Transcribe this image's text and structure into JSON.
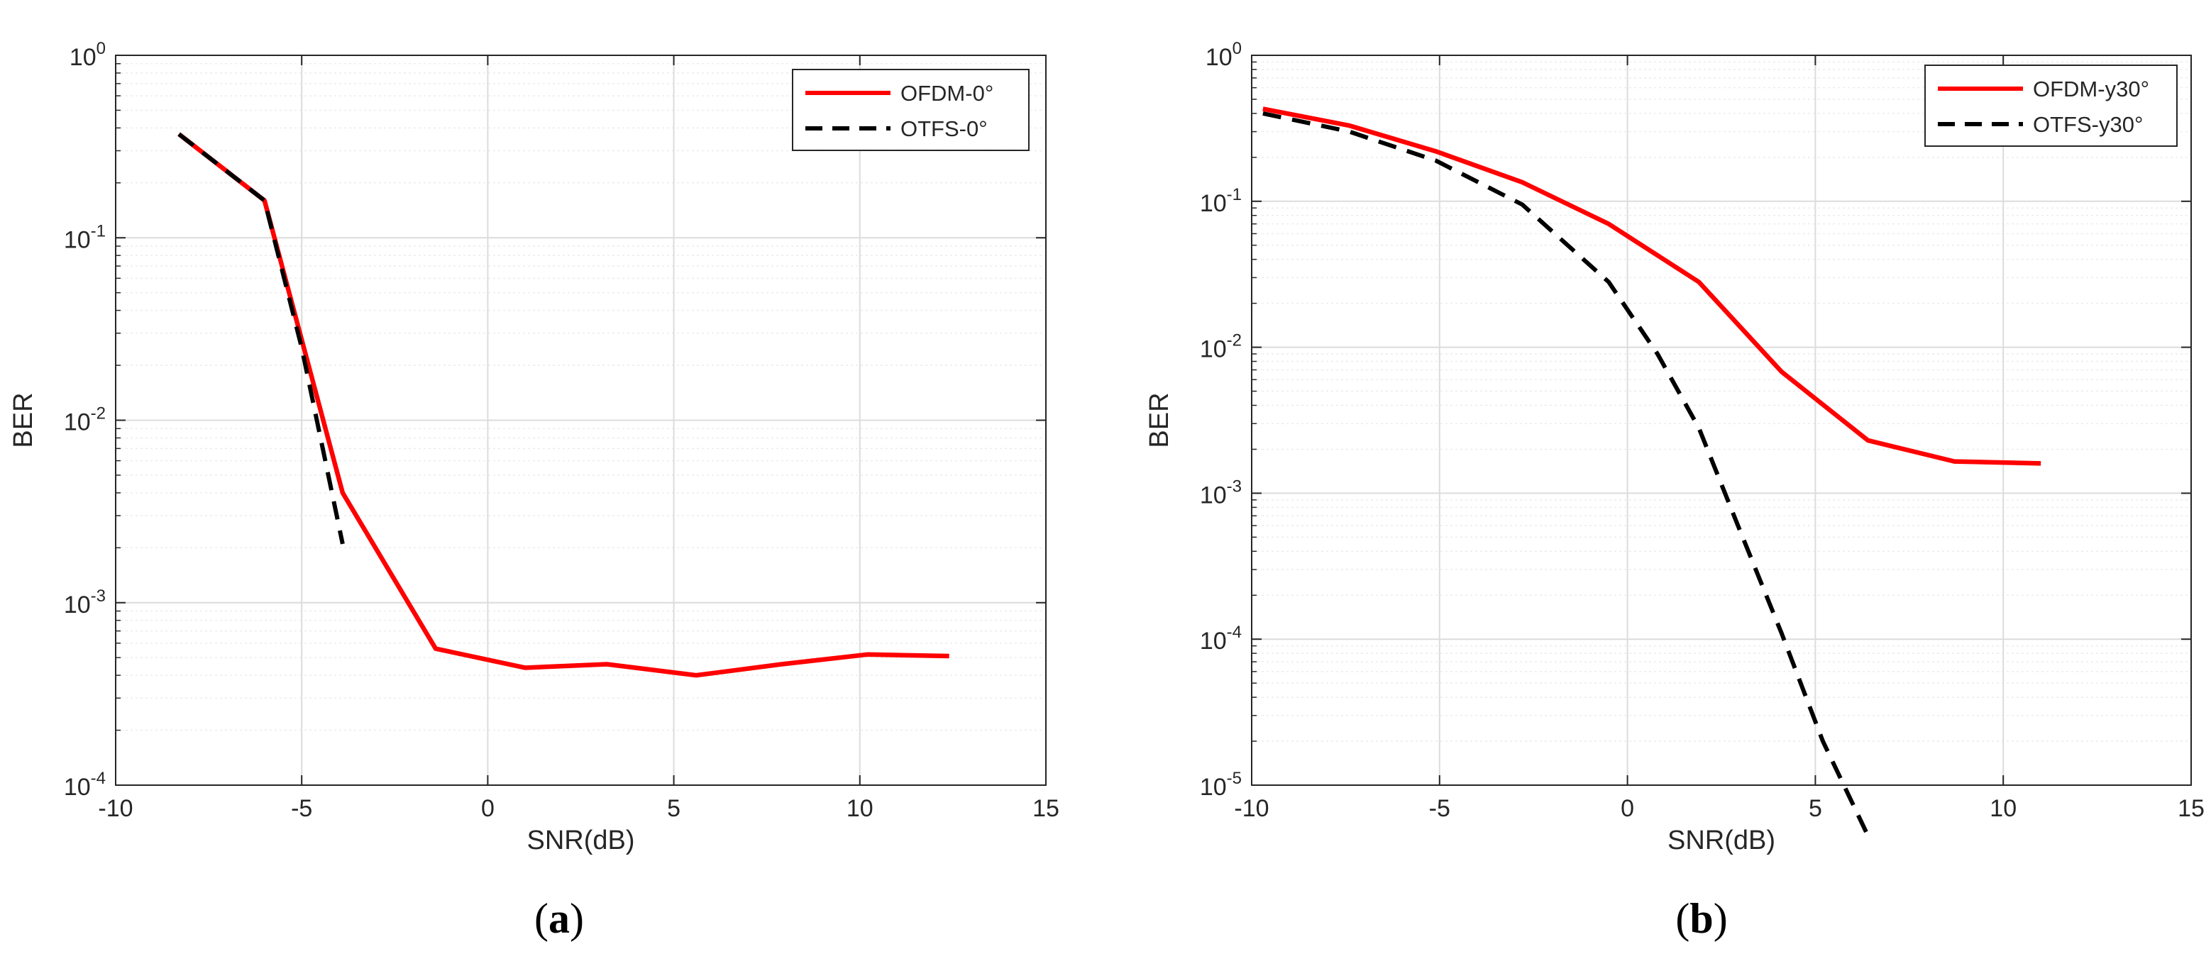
{
  "chart_data": [
    {
      "type": "line",
      "panel_label": "a",
      "xlabel": "SNR(dB)",
      "ylabel": "BER",
      "xlim": [
        -10,
        15
      ],
      "ylim": [
        0.0001,
        1
      ],
      "yscale": "log",
      "xticks": [
        "-10",
        "-5",
        "0",
        "5",
        "10",
        "15"
      ],
      "yticks": [
        {
          "base": "10",
          "exp": "0",
          "value": 1
        },
        {
          "base": "10",
          "exp": "-1",
          "value": 0.1
        },
        {
          "base": "10",
          "exp": "-2",
          "value": 0.01
        },
        {
          "base": "10",
          "exp": "-3",
          "value": 0.001
        },
        {
          "base": "10",
          "exp": "-4",
          "value": 0.0001
        }
      ],
      "grid": true,
      "legend_position": "top-right",
      "series": [
        {
          "name": "OFDM-0°",
          "style": "solid",
          "color": "#ff0000",
          "x": [
            -8.3,
            -6.0,
            -3.9,
            -1.4,
            1.0,
            3.2,
            5.6,
            7.9,
            10.2,
            12.4
          ],
          "y": [
            0.37,
            0.16,
            0.004,
            0.00056,
            0.00044,
            0.00046,
            0.0004,
            0.00046,
            0.00052,
            0.00051
          ]
        },
        {
          "name": "OTFS-0°",
          "style": "dashed",
          "color": "#000000",
          "x": [
            -8.3,
            -6.0,
            -5.0,
            -3.9
          ],
          "y": [
            0.37,
            0.16,
            0.025,
            0.0021
          ]
        }
      ]
    },
    {
      "type": "line",
      "panel_label": "b",
      "xlabel": "SNR(dB)",
      "ylabel": "BER",
      "xlim": [
        -10,
        15
      ],
      "ylim": [
        1e-05,
        1
      ],
      "yscale": "log",
      "xticks": [
        "-10",
        "-5",
        "0",
        "5",
        "10",
        "15"
      ],
      "yticks": [
        {
          "base": "10",
          "exp": "0",
          "value": 1
        },
        {
          "base": "10",
          "exp": "-1",
          "value": 0.1
        },
        {
          "base": "10",
          "exp": "-2",
          "value": 0.01
        },
        {
          "base": "10",
          "exp": "-3",
          "value": 0.001
        },
        {
          "base": "10",
          "exp": "-4",
          "value": 0.0001
        },
        {
          "base": "10",
          "exp": "-5",
          "value": 1e-05
        }
      ],
      "grid": true,
      "legend_position": "top-right",
      "series": [
        {
          "name": "OFDM-y30°",
          "style": "solid",
          "color": "#ff0000",
          "x": [
            -9.7,
            -7.4,
            -5.1,
            -2.8,
            -0.5,
            1.9,
            4.1,
            6.4,
            8.7,
            11.0
          ],
          "y": [
            0.43,
            0.33,
            0.22,
            0.135,
            0.07,
            0.028,
            0.0068,
            0.0023,
            0.00165,
            0.0016
          ]
        },
        {
          "name": "OTFS-y30°",
          "style": "dashed",
          "color": "#000000",
          "x": [
            -9.7,
            -7.4,
            -5.1,
            -2.8,
            -0.5,
            0.8,
            1.9,
            3.0,
            4.1,
            5.2,
            6.4
          ],
          "y": [
            0.4,
            0.3,
            0.19,
            0.095,
            0.028,
            0.009,
            0.0028,
            0.00055,
            0.00011,
            2e-05,
            4.5e-06
          ]
        }
      ]
    }
  ]
}
